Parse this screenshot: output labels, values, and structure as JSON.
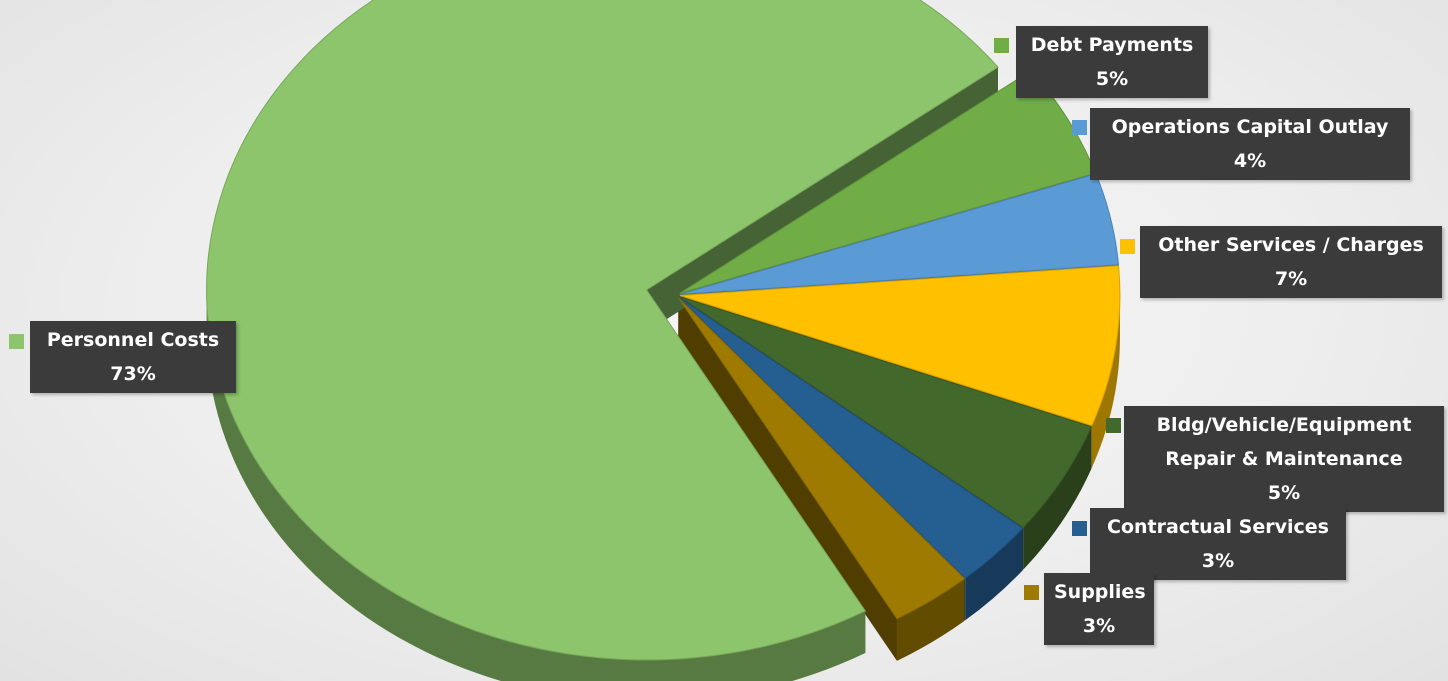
{
  "chart_data": {
    "type": "pie",
    "title": "",
    "slices": [
      {
        "label": "Debt Payments",
        "value": 5,
        "value_label": "5%",
        "color": "#70ad47"
      },
      {
        "label": "Operations Capital Outlay",
        "value": 4,
        "value_label": "4%",
        "color": "#5b9bd5"
      },
      {
        "label": "Other Services / Charges",
        "value": 7,
        "value_label": "7%",
        "color": "#ffc000"
      },
      {
        "label": "Bldg/Vehicle/Equipment Repair & Maintenance",
        "label_lines": [
          "Bldg/Vehicle/Equipment",
          "Repair & Maintenance"
        ],
        "value": 5,
        "value_label": "5%",
        "color": "#43682b"
      },
      {
        "label": "Contractual Services",
        "value": 3,
        "value_label": "3%",
        "color": "#255e91"
      },
      {
        "label": "Supplies",
        "value": 3,
        "value_label": "3%",
        "color": "#9e7b00"
      },
      {
        "label": "Personnel Costs",
        "value": 73,
        "value_label": "73%",
        "color": "#8cc56b"
      }
    ],
    "exploded_slice": "Personnel Costs",
    "style": "3d-exploded",
    "legend": "data callouts"
  }
}
